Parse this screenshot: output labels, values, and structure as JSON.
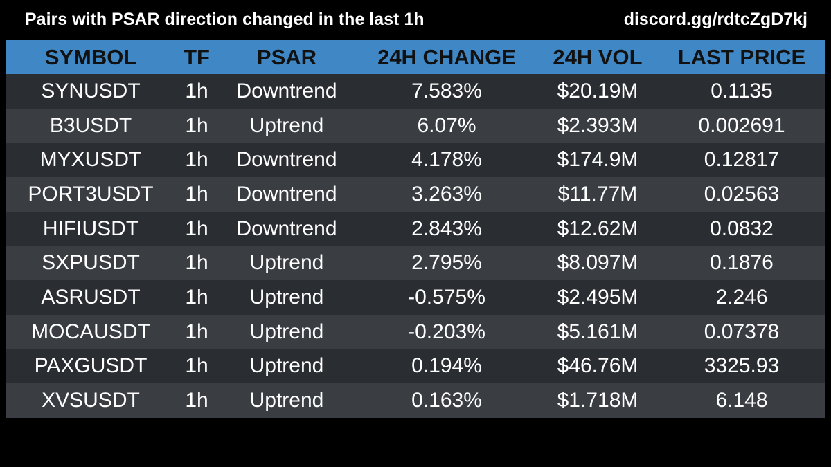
{
  "header": {
    "title": "Pairs with PSAR direction changed in the last 1h",
    "link": "discord.gg/rdtcZgD7kj"
  },
  "colors": {
    "background": "#000000",
    "header_row": "#3f88c5",
    "row_dark": "#2a2d31",
    "row_light": "#3a3e43",
    "text": "#ffffff",
    "header_text": "#111111"
  },
  "table": {
    "columns": [
      "SYMBOL",
      "TF",
      "PSAR",
      "24H CHANGE",
      "24H VOL",
      "LAST PRICE"
    ],
    "rows": [
      {
        "symbol": "SYNUSDT",
        "tf": "1h",
        "psar": "Downtrend",
        "change": "7.583%",
        "vol": "$20.19M",
        "price": "0.1135"
      },
      {
        "symbol": "B3USDT",
        "tf": "1h",
        "psar": "Uptrend",
        "change": "6.07%",
        "vol": "$2.393M",
        "price": "0.002691"
      },
      {
        "symbol": "MYXUSDT",
        "tf": "1h",
        "psar": "Downtrend",
        "change": "4.178%",
        "vol": "$174.9M",
        "price": "0.12817"
      },
      {
        "symbol": "PORT3USDT",
        "tf": "1h",
        "psar": "Downtrend",
        "change": "3.263%",
        "vol": "$11.77M",
        "price": "0.02563"
      },
      {
        "symbol": "HIFIUSDT",
        "tf": "1h",
        "psar": "Downtrend",
        "change": "2.843%",
        "vol": "$12.62M",
        "price": "0.0832"
      },
      {
        "symbol": "SXPUSDT",
        "tf": "1h",
        "psar": "Uptrend",
        "change": "2.795%",
        "vol": "$8.097M",
        "price": "0.1876"
      },
      {
        "symbol": "ASRUSDT",
        "tf": "1h",
        "psar": "Uptrend",
        "change": "-0.575%",
        "vol": "$2.495M",
        "price": "2.246"
      },
      {
        "symbol": "MOCAUSDT",
        "tf": "1h",
        "psar": "Uptrend",
        "change": "-0.203%",
        "vol": "$5.161M",
        "price": "0.07378"
      },
      {
        "symbol": "PAXGUSDT",
        "tf": "1h",
        "psar": "Uptrend",
        "change": "0.194%",
        "vol": "$46.76M",
        "price": "3325.93"
      },
      {
        "symbol": "XVSUSDT",
        "tf": "1h",
        "psar": "Uptrend",
        "change": "0.163%",
        "vol": "$1.718M",
        "price": "6.148"
      }
    ]
  }
}
